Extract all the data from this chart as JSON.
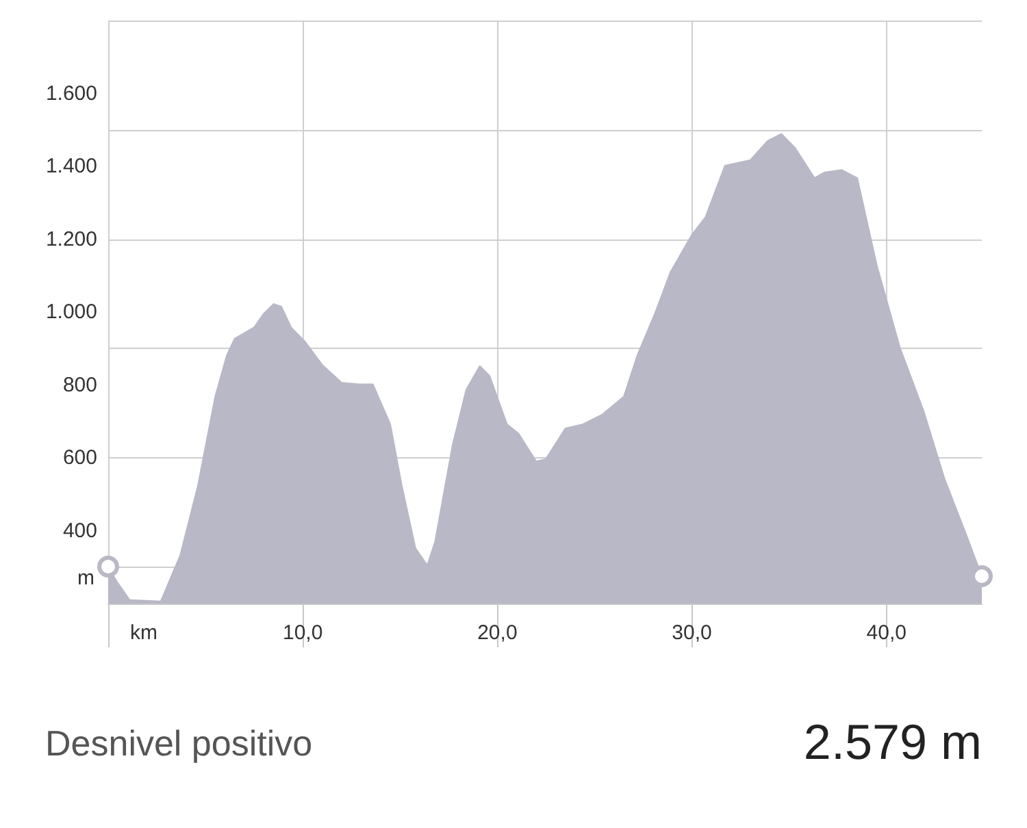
{
  "chart_data": {
    "type": "area",
    "xlabel": "km",
    "ylabel": "m",
    "color": "#b8b8c6",
    "x": [
      0,
      0.5,
      1.1,
      2.7,
      3.7,
      4.6,
      5.5,
      6.1,
      6.5,
      7.5,
      8.0,
      8.5,
      8.9,
      9.4,
      10.1,
      11.0,
      12.0,
      12.9,
      13.6,
      14.5,
      15.1,
      15.8,
      16.4,
      16.8,
      17.7,
      18.4,
      19.1,
      19.6,
      20.5,
      21.1,
      22.0,
      22.5,
      23.5,
      24.4,
      25.4,
      26.5,
      27.2,
      28.1,
      28.9,
      30.0,
      30.7,
      31.7,
      33.0,
      33.9,
      34.6,
      35.3,
      36.3,
      36.8,
      37.7,
      38.5,
      39.5,
      40.7,
      41.9,
      43.0,
      44.1,
      44.9
    ],
    "values": [
      300,
      256,
      210,
      206,
      332,
      521,
      768,
      882,
      927,
      958,
      996,
      1022,
      1015,
      958,
      920,
      855,
      806,
      802,
      802,
      692,
      521,
      351,
      305,
      370,
      635,
      787,
      852,
      825,
      692,
      666,
      590,
      597,
      681,
      692,
      719,
      768,
      882,
      996,
      1110,
      1212,
      1261,
      1402,
      1417,
      1470,
      1489,
      1451,
      1368,
      1383,
      1390,
      1368,
      1129,
      901,
      730,
      540,
      389,
      275
    ],
    "xlim": [
      0,
      44.9
    ],
    "ylim": [
      200,
      1800
    ],
    "xticks": [
      {
        "value": 0,
        "label": null
      },
      {
        "value": 10,
        "label": "10,0"
      },
      {
        "value": 20,
        "label": "20,0"
      },
      {
        "value": 30,
        "label": "30,0"
      },
      {
        "value": 40,
        "label": "40,0"
      }
    ],
    "yticks": [
      {
        "value": 400,
        "label": "400"
      },
      {
        "value": 600,
        "label": "600"
      },
      {
        "value": 800,
        "label": "800"
      },
      {
        "value": 1000,
        "label": "1.000"
      },
      {
        "value": 1200,
        "label": "1.200"
      },
      {
        "value": 1400,
        "label": "1.400"
      },
      {
        "value": 1600,
        "label": "1.600"
      }
    ],
    "grid": true,
    "annotations": [
      "Desnivel positivo",
      "2.579 m"
    ]
  }
}
